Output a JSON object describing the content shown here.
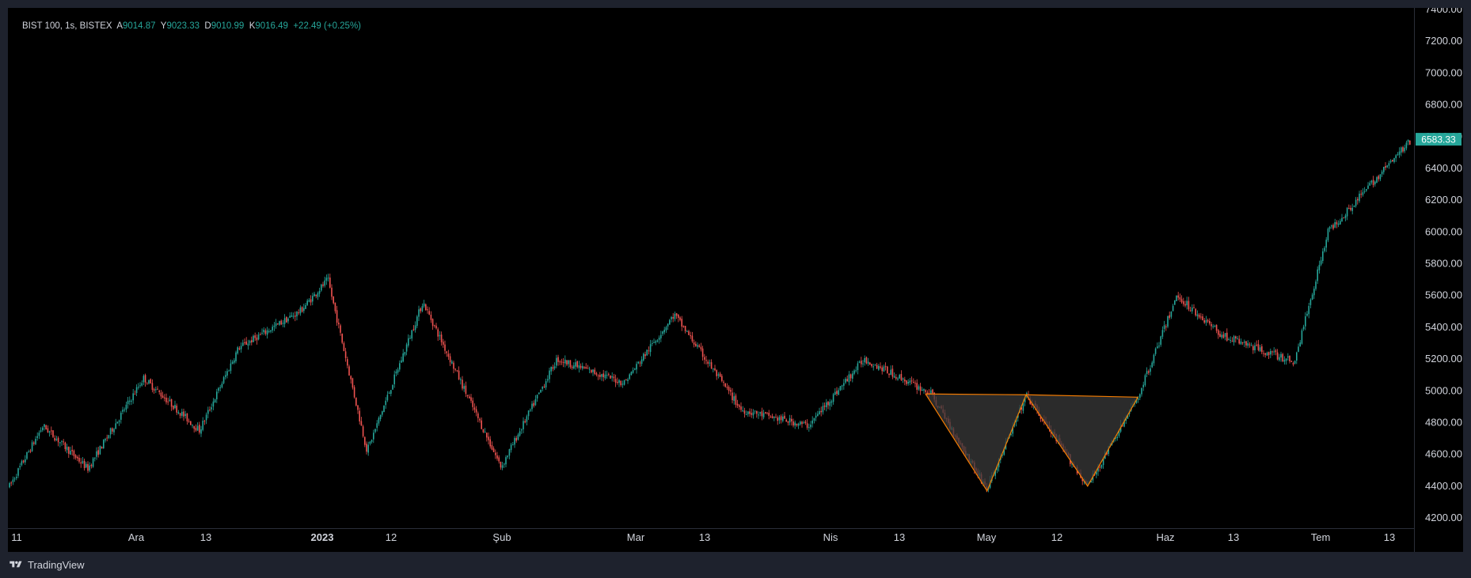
{
  "legend": {
    "symbol": "BIST 100, 1s, BISTEX",
    "open_label": "A",
    "open": "9014.87",
    "high_label": "Y",
    "high": "9023.33",
    "low_label": "D",
    "low": "9010.99",
    "close_label": "K",
    "close": "9016.49",
    "change": "+22.49 (+0.25%)"
  },
  "last_price_label": "6583.33",
  "branding": "TradingView",
  "colors": {
    "background": "#000000",
    "frame": "#1e222d",
    "up": "#26a69a",
    "down": "#ef5350",
    "pattern_line": "#f57c00",
    "pattern_fill": "#3a3a3a",
    "axis_text": "#d1d4dc"
  },
  "chart_data": {
    "type": "candlestick",
    "y_ticks": [
      "4200.00",
      "4400.00",
      "4600.00",
      "4800.00",
      "5000.00",
      "5200.00",
      "5400.00",
      "5600.00",
      "5800.00",
      "6000.00",
      "6200.00",
      "6400.00",
      "6600.00",
      "6800.00",
      "7000.00",
      "7200.00",
      "7400.00"
    ],
    "ylim": [
      4150,
      7420
    ],
    "x_ticks": [
      "11",
      "Ara",
      "13",
      "2023",
      "12",
      "Şub",
      "Mar",
      "13",
      "Nis",
      "13",
      "May",
      "12",
      "Haz",
      "13",
      "Tem",
      "13"
    ],
    "last_price": 6583.33,
    "price_path_approx": [
      {
        "date": "2022-11-11",
        "close": 4400
      },
      {
        "date": "2022-11-17",
        "close": 4780
      },
      {
        "date": "2022-11-25",
        "close": 4510
      },
      {
        "date": "2022-12-05",
        "close": 5080
      },
      {
        "date": "2022-12-15",
        "close": 4750
      },
      {
        "date": "2022-12-22",
        "close": 5270
      },
      {
        "date": "2023-01-02",
        "close": 5500
      },
      {
        "date": "2023-01-07",
        "close": 5700
      },
      {
        "date": "2023-01-14",
        "close": 4620
      },
      {
        "date": "2023-01-24",
        "close": 5560
      },
      {
        "date": "2023-02-07",
        "close": 4520
      },
      {
        "date": "2023-02-17",
        "close": 5200
      },
      {
        "date": "2023-03-01",
        "close": 5050
      },
      {
        "date": "2023-03-10",
        "close": 5480
      },
      {
        "date": "2023-03-22",
        "close": 4880
      },
      {
        "date": "2023-04-03",
        "close": 4780
      },
      {
        "date": "2023-04-13",
        "close": 5200
      },
      {
        "date": "2023-04-25",
        "close": 4980
      },
      {
        "date": "2023-05-05",
        "close": 4380
      },
      {
        "date": "2023-05-12",
        "close": 4970
      },
      {
        "date": "2023-05-23",
        "close": 4400
      },
      {
        "date": "2023-06-01",
        "close": 4960
      },
      {
        "date": "2023-06-08",
        "close": 5600
      },
      {
        "date": "2023-06-16",
        "close": 5350
      },
      {
        "date": "2023-06-29",
        "close": 5180
      },
      {
        "date": "2023-07-05",
        "close": 6000
      },
      {
        "date": "2023-07-20",
        "close": 6583.33
      }
    ],
    "pattern": {
      "type": "double-bottom (W)",
      "points": [
        {
          "date": "2023-04-24",
          "price": 4980
        },
        {
          "date": "2023-05-05",
          "price": 4370
        },
        {
          "date": "2023-05-12",
          "price": 4975
        },
        {
          "date": "2023-05-23",
          "price": 4400
        },
        {
          "date": "2023-06-01",
          "price": 4960
        }
      ]
    }
  }
}
